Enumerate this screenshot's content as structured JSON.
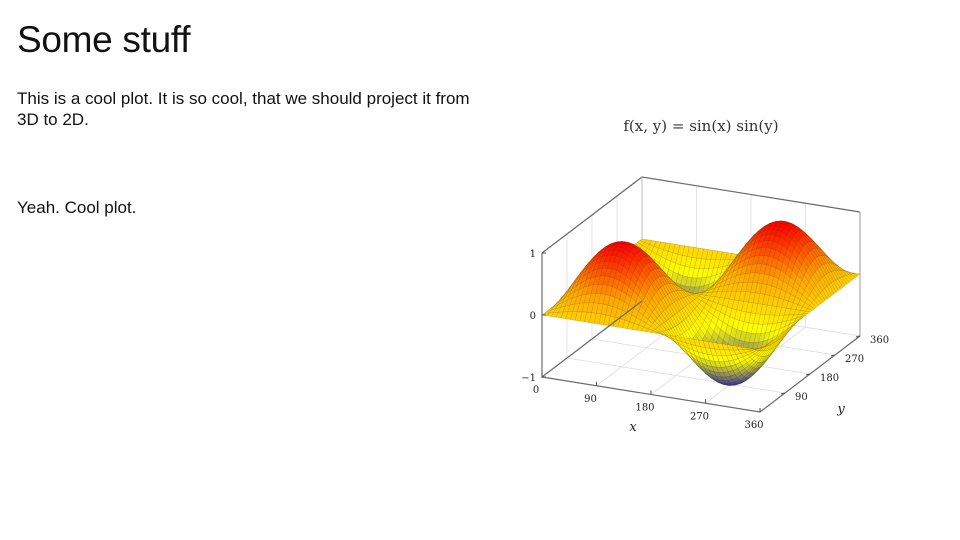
{
  "slide": {
    "title": "Some stuff",
    "paragraph_1": "This is a cool plot. It is so cool, that we should project it from 3D to 2D.",
    "paragraph_2": "Yeah. Cool plot."
  },
  "chart_data": {
    "type": "surface",
    "title": "f(x, y) = sin(x) sin(y)",
    "function": "sin(x) sin(y)",
    "xlabel": "x",
    "ylabel": "y",
    "x_ticks": [
      0,
      90,
      180,
      270,
      360
    ],
    "y_ticks": [
      90,
      180,
      270,
      360
    ],
    "z_ticks": [
      -1,
      0,
      1
    ],
    "xlim": [
      0,
      360
    ],
    "ylim": [
      0,
      360
    ],
    "zlim": [
      -1,
      1
    ],
    "grid": true,
    "colormap": [
      "#1f1fb4",
      "#ffff00",
      "#ffa500",
      "#ff0000"
    ]
  }
}
